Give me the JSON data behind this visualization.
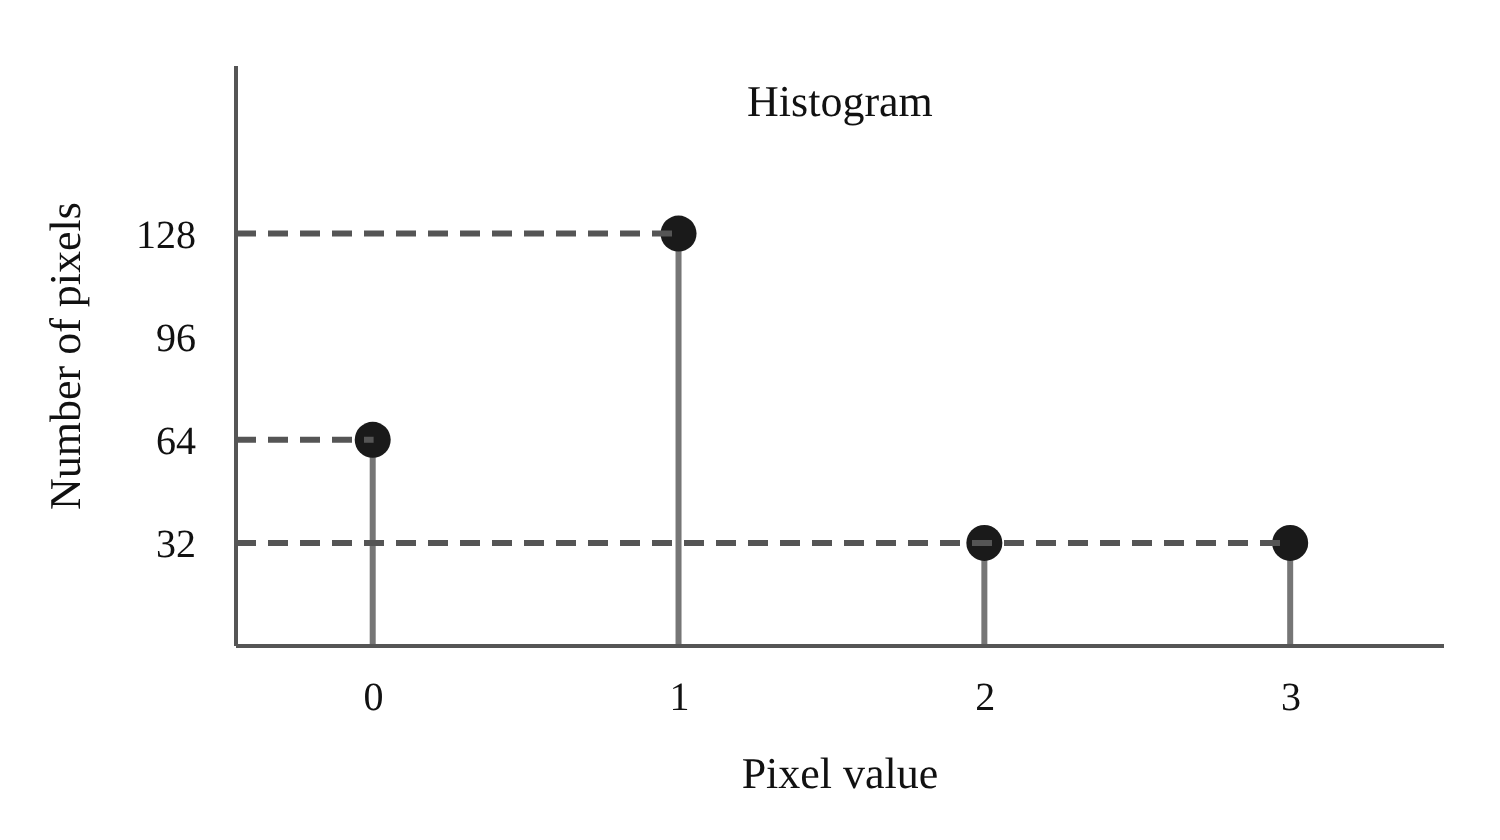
{
  "chart_data": {
    "type": "lollipop",
    "title": "Histogram",
    "xlabel": "Pixel value",
    "ylabel": "Number of pixels",
    "categories": [
      "0",
      "1",
      "2",
      "3"
    ],
    "series": [
      {
        "color": "#1a1a1a",
        "values": [
          64,
          128,
          32,
          32
        ]
      }
    ],
    "ylim": [
      0,
      180
    ],
    "yticks": [
      32,
      64,
      96,
      128
    ],
    "grid": false,
    "legend": false,
    "marker": "circle",
    "ref_lines": [
      {
        "axis": "y",
        "value": 64,
        "color": "#555555",
        "line_style": "dashed"
      },
      {
        "axis": "y",
        "value": 128,
        "color": "#555555",
        "line_style": "dashed"
      },
      {
        "axis": "y",
        "value": 32,
        "color": "#555555",
        "line_style": "dashed"
      }
    ]
  }
}
